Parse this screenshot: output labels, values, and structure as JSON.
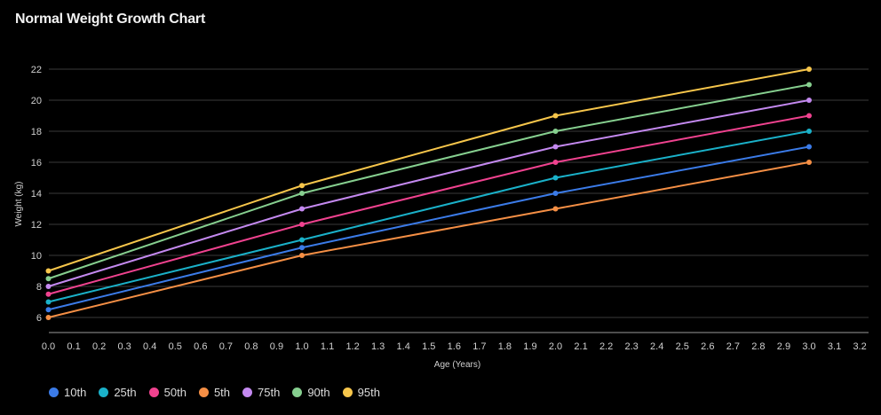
{
  "chart_data": {
    "type": "line",
    "title": "Normal Weight Growth Chart",
    "xlabel": "Age (Years)",
    "ylabel": "Weight (kg)",
    "xlim": [
      -0.05,
      3.2
    ],
    "ylim": [
      5.5,
      23
    ],
    "x_ticks": [
      "0.0",
      "0.1",
      "0.2",
      "0.3",
      "0.4",
      "0.5",
      "0.6",
      "0.7",
      "0.8",
      "0.9",
      "1.0",
      "1.1",
      "1.2",
      "1.3",
      "1.4",
      "1.5",
      "1.6",
      "1.7",
      "1.8",
      "1.9",
      "2.0",
      "2.1",
      "2.2",
      "2.3",
      "2.4",
      "2.5",
      "2.6",
      "2.7",
      "2.8",
      "2.9",
      "3.0",
      "3.1",
      "3.2"
    ],
    "y_ticks": [
      "6",
      "8",
      "10",
      "12",
      "14",
      "16",
      "18",
      "20",
      "22"
    ],
    "grid": true,
    "legend_position": "bottom-left",
    "x": [
      0,
      1,
      2,
      3
    ],
    "series": [
      {
        "name": "10th",
        "color": "#3b7be8",
        "values": [
          6.5,
          10.5,
          14,
          17
        ]
      },
      {
        "name": "25th",
        "color": "#1ab1c9",
        "values": [
          7,
          11,
          15,
          18
        ]
      },
      {
        "name": "50th",
        "color": "#f0428f",
        "values": [
          7.5,
          12,
          16,
          19
        ]
      },
      {
        "name": "5th",
        "color": "#f58f45",
        "values": [
          6,
          10,
          13,
          16
        ]
      },
      {
        "name": "75th",
        "color": "#c489f0",
        "values": [
          8,
          13,
          17,
          20
        ]
      },
      {
        "name": "90th",
        "color": "#86cf8f",
        "values": [
          8.5,
          14,
          18,
          21
        ]
      },
      {
        "name": "95th",
        "color": "#f7c64b",
        "values": [
          9,
          14.5,
          19,
          22
        ]
      }
    ]
  }
}
